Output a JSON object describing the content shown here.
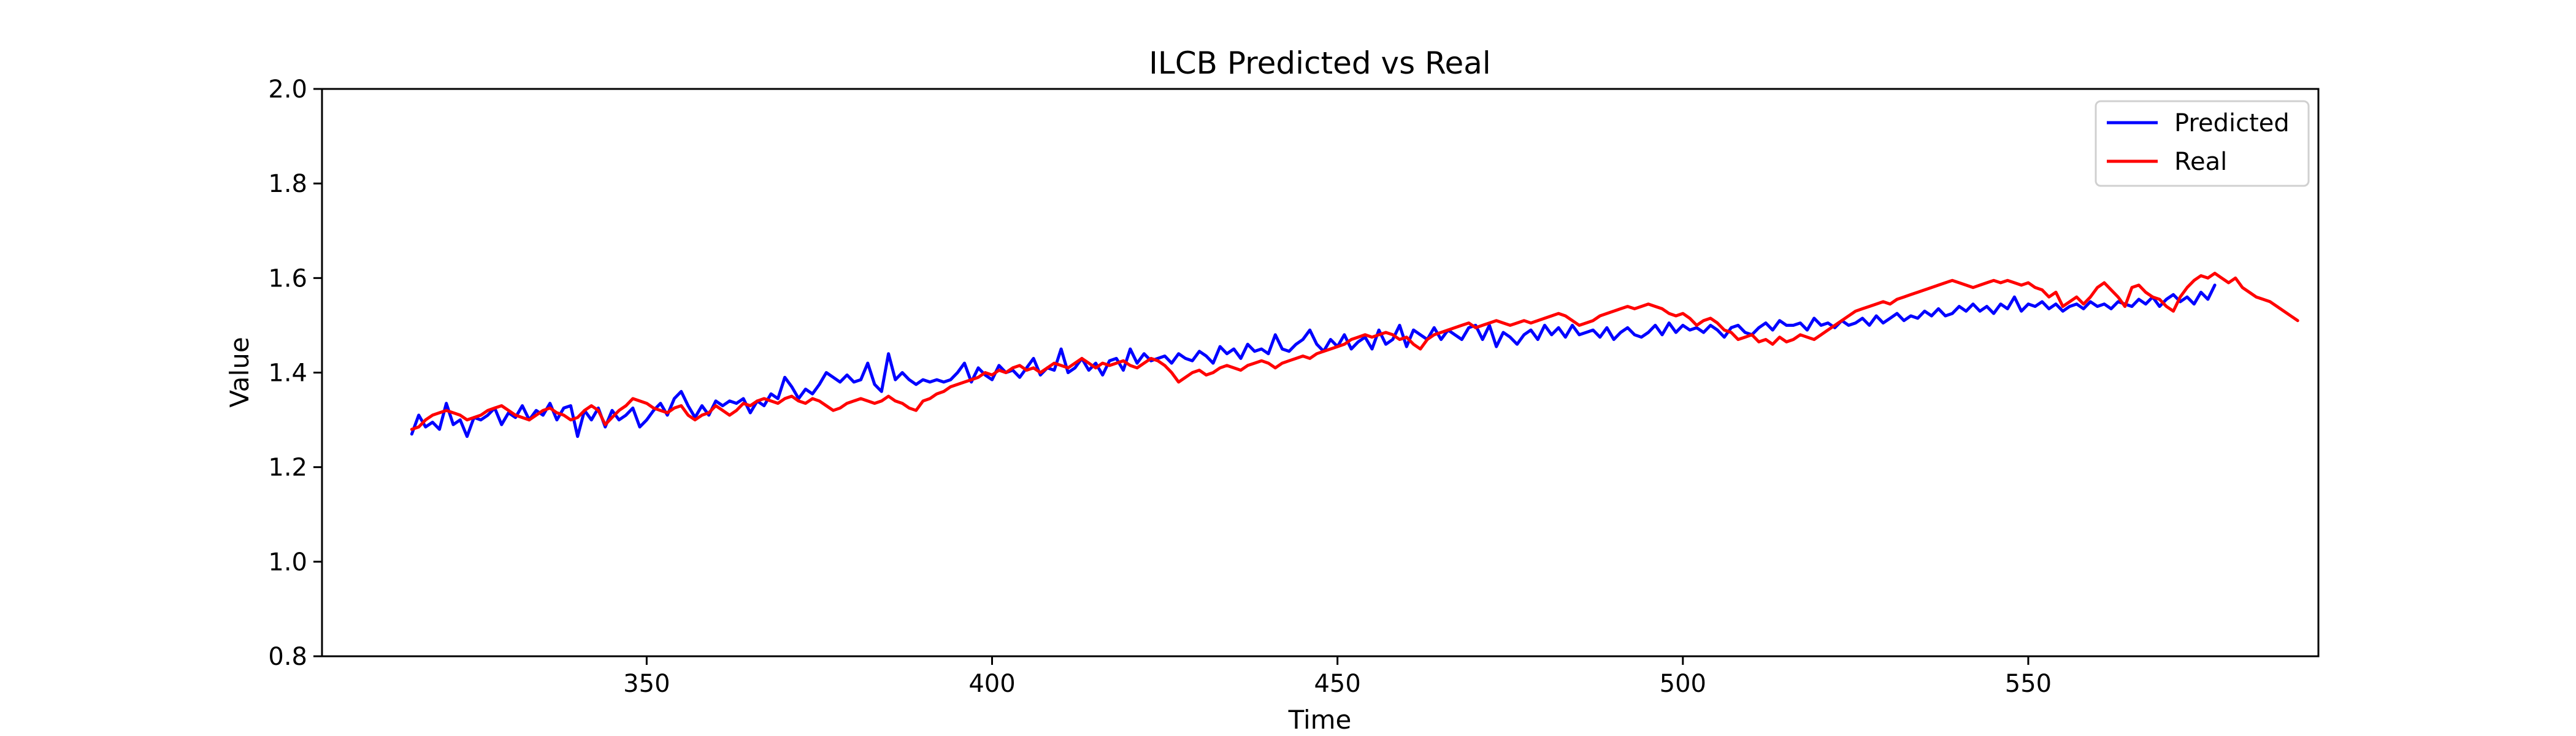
{
  "chart_data": {
    "type": "line",
    "title": "ILCB Predicted vs Real",
    "xlabel": "Time",
    "ylabel": "Value",
    "xlim": [
      303,
      592
    ],
    "ylim": [
      0.8,
      2.0
    ],
    "xticks": [
      350,
      400,
      450,
      500,
      550
    ],
    "yticks": [
      0.8,
      1.0,
      1.2,
      1.4,
      1.6,
      1.8,
      2.0
    ],
    "x_start": 316,
    "x_step": 1,
    "legend_position": "top-right",
    "grid": false,
    "series": [
      {
        "name": "Predicted",
        "color": "#0000ff",
        "values": [
          1.27,
          1.31,
          1.285,
          1.295,
          1.28,
          1.335,
          1.29,
          1.3,
          1.265,
          1.305,
          1.3,
          1.31,
          1.325,
          1.29,
          1.315,
          1.305,
          1.33,
          1.3,
          1.32,
          1.31,
          1.335,
          1.3,
          1.325,
          1.33,
          1.265,
          1.32,
          1.3,
          1.325,
          1.285,
          1.32,
          1.3,
          1.31,
          1.325,
          1.285,
          1.3,
          1.32,
          1.335,
          1.31,
          1.345,
          1.36,
          1.33,
          1.305,
          1.33,
          1.31,
          1.34,
          1.33,
          1.34,
          1.335,
          1.345,
          1.315,
          1.34,
          1.33,
          1.355,
          1.345,
          1.39,
          1.37,
          1.345,
          1.365,
          1.355,
          1.375,
          1.4,
          1.39,
          1.38,
          1.395,
          1.38,
          1.385,
          1.42,
          1.375,
          1.36,
          1.44,
          1.385,
          1.4,
          1.385,
          1.375,
          1.385,
          1.38,
          1.385,
          1.38,
          1.385,
          1.4,
          1.42,
          1.38,
          1.41,
          1.395,
          1.385,
          1.415,
          1.4,
          1.405,
          1.39,
          1.41,
          1.43,
          1.395,
          1.41,
          1.405,
          1.45,
          1.4,
          1.41,
          1.43,
          1.405,
          1.42,
          1.395,
          1.425,
          1.43,
          1.405,
          1.45,
          1.42,
          1.44,
          1.425,
          1.43,
          1.435,
          1.42,
          1.44,
          1.43,
          1.425,
          1.445,
          1.435,
          1.42,
          1.455,
          1.44,
          1.45,
          1.43,
          1.46,
          1.445,
          1.45,
          1.44,
          1.48,
          1.45,
          1.445,
          1.46,
          1.47,
          1.49,
          1.46,
          1.445,
          1.47,
          1.455,
          1.48,
          1.45,
          1.465,
          1.475,
          1.45,
          1.49,
          1.46,
          1.47,
          1.5,
          1.455,
          1.49,
          1.48,
          1.47,
          1.495,
          1.47,
          1.49,
          1.48,
          1.47,
          1.495,
          1.5,
          1.47,
          1.5,
          1.455,
          1.485,
          1.475,
          1.46,
          1.48,
          1.49,
          1.47,
          1.5,
          1.48,
          1.495,
          1.475,
          1.5,
          1.48,
          1.485,
          1.49,
          1.475,
          1.495,
          1.47,
          1.485,
          1.495,
          1.48,
          1.475,
          1.485,
          1.5,
          1.48,
          1.505,
          1.485,
          1.5,
          1.49,
          1.495,
          1.485,
          1.5,
          1.49,
          1.475,
          1.495,
          1.5,
          1.485,
          1.48,
          1.495,
          1.505,
          1.49,
          1.51,
          1.5,
          1.5,
          1.505,
          1.49,
          1.515,
          1.5,
          1.505,
          1.495,
          1.51,
          1.5,
          1.505,
          1.515,
          1.5,
          1.52,
          1.505,
          1.515,
          1.525,
          1.51,
          1.52,
          1.515,
          1.53,
          1.52,
          1.535,
          1.52,
          1.525,
          1.54,
          1.53,
          1.545,
          1.53,
          1.54,
          1.525,
          1.545,
          1.535,
          1.56,
          1.53,
          1.545,
          1.54,
          1.55,
          1.535,
          1.545,
          1.53,
          1.54,
          1.545,
          1.535,
          1.55,
          1.54,
          1.545,
          1.535,
          1.55,
          1.545,
          1.54,
          1.555,
          1.545,
          1.56,
          1.54,
          1.555,
          1.565,
          1.55,
          1.56,
          1.545,
          1.57,
          1.555,
          1.585
        ]
      },
      {
        "name": "Real",
        "color": "#ff0000",
        "values": [
          1.28,
          1.285,
          1.3,
          1.31,
          1.315,
          1.32,
          1.315,
          1.31,
          1.3,
          1.305,
          1.31,
          1.32,
          1.325,
          1.33,
          1.32,
          1.31,
          1.305,
          1.3,
          1.31,
          1.32,
          1.325,
          1.315,
          1.31,
          1.3,
          1.305,
          1.32,
          1.33,
          1.32,
          1.29,
          1.305,
          1.32,
          1.33,
          1.345,
          1.34,
          1.335,
          1.325,
          1.32,
          1.315,
          1.325,
          1.33,
          1.31,
          1.3,
          1.31,
          1.315,
          1.33,
          1.32,
          1.31,
          1.32,
          1.335,
          1.33,
          1.34,
          1.345,
          1.34,
          1.335,
          1.345,
          1.35,
          1.34,
          1.335,
          1.345,
          1.34,
          1.33,
          1.32,
          1.325,
          1.335,
          1.34,
          1.345,
          1.34,
          1.335,
          1.34,
          1.35,
          1.34,
          1.335,
          1.325,
          1.32,
          1.34,
          1.345,
          1.355,
          1.36,
          1.37,
          1.375,
          1.38,
          1.385,
          1.39,
          1.4,
          1.395,
          1.405,
          1.4,
          1.41,
          1.415,
          1.405,
          1.41,
          1.4,
          1.41,
          1.42,
          1.415,
          1.41,
          1.42,
          1.43,
          1.42,
          1.41,
          1.42,
          1.415,
          1.42,
          1.425,
          1.415,
          1.41,
          1.42,
          1.43,
          1.425,
          1.415,
          1.4,
          1.38,
          1.39,
          1.4,
          1.405,
          1.395,
          1.4,
          1.41,
          1.415,
          1.41,
          1.405,
          1.415,
          1.42,
          1.425,
          1.42,
          1.41,
          1.42,
          1.425,
          1.43,
          1.435,
          1.43,
          1.44,
          1.445,
          1.45,
          1.455,
          1.46,
          1.47,
          1.475,
          1.48,
          1.475,
          1.48,
          1.485,
          1.48,
          1.47,
          1.475,
          1.46,
          1.45,
          1.47,
          1.48,
          1.485,
          1.49,
          1.495,
          1.5,
          1.505,
          1.495,
          1.5,
          1.505,
          1.51,
          1.505,
          1.5,
          1.505,
          1.51,
          1.505,
          1.51,
          1.515,
          1.52,
          1.525,
          1.52,
          1.51,
          1.5,
          1.505,
          1.51,
          1.52,
          1.525,
          1.53,
          1.535,
          1.54,
          1.535,
          1.54,
          1.545,
          1.54,
          1.535,
          1.525,
          1.52,
          1.525,
          1.515,
          1.5,
          1.51,
          1.515,
          1.505,
          1.49,
          1.485,
          1.47,
          1.475,
          1.48,
          1.465,
          1.47,
          1.46,
          1.475,
          1.465,
          1.47,
          1.48,
          1.475,
          1.47,
          1.48,
          1.49,
          1.5,
          1.51,
          1.52,
          1.53,
          1.535,
          1.54,
          1.545,
          1.55,
          1.545,
          1.555,
          1.56,
          1.565,
          1.57,
          1.575,
          1.58,
          1.585,
          1.59,
          1.595,
          1.59,
          1.585,
          1.58,
          1.585,
          1.59,
          1.595,
          1.59,
          1.595,
          1.59,
          1.585,
          1.59,
          1.58,
          1.575,
          1.56,
          1.57,
          1.54,
          1.55,
          1.56,
          1.545,
          1.56,
          1.58,
          1.59,
          1.575,
          1.56,
          1.54,
          1.58,
          1.585,
          1.57,
          1.56,
          1.555,
          1.54,
          1.53,
          1.56,
          1.58,
          1.595,
          1.605,
          1.6,
          1.61,
          1.6,
          1.59,
          1.6,
          1.58,
          1.57,
          1.56,
          1.555,
          1.55,
          1.54,
          1.53,
          1.52,
          1.51
        ]
      }
    ]
  }
}
